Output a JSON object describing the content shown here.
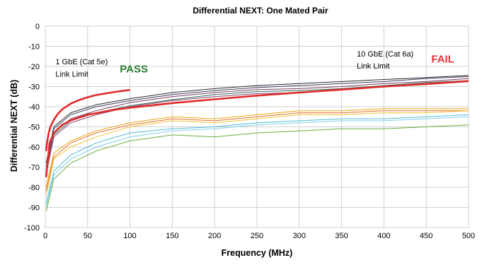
{
  "chart_data": {
    "type": "line",
    "title": "Differential NEXT: One Mated Pair",
    "xlabel": "Frequency (MHz)",
    "ylabel": "Differential NEXT (dB)",
    "xlim": [
      0,
      500
    ],
    "ylim": [
      -100,
      0
    ],
    "xticks": [
      0,
      50,
      100,
      150,
      200,
      250,
      300,
      350,
      400,
      450,
      500
    ],
    "yticks": [
      0,
      -10,
      -20,
      -30,
      -40,
      -50,
      -60,
      -70,
      -80,
      -90,
      -100
    ],
    "grid": true,
    "annotations": [
      {
        "text": "1 GbE (Cat 5e)",
        "x": 12,
        "y": -19
      },
      {
        "text": "Link Limit",
        "x": 12,
        "y": -25
      },
      {
        "text": "PASS",
        "x": 88,
        "y": -23,
        "color": "#2e7d32"
      },
      {
        "text": "10 GbE (Cat 6a)",
        "x": 368,
        "y": -15
      },
      {
        "text": "Link Limit",
        "x": 368,
        "y": -21
      },
      {
        "text": "FAIL",
        "x": 456,
        "y": -18,
        "color": "#e8333a"
      }
    ],
    "limit_lines": [
      {
        "label": "1 GbE (Cat 5e) Link Limit",
        "color": "#e02a2a",
        "x": [
          1,
          2,
          4,
          6,
          10,
          15,
          20,
          30,
          40,
          50,
          60,
          70,
          80,
          90,
          100
        ],
        "y": [
          -62,
          -58,
          -53,
          -50,
          -46.5,
          -43.5,
          -41.3,
          -38.5,
          -36.7,
          -35.3,
          -34.2,
          -33.5,
          -32.8,
          -32.2,
          -31.7
        ]
      },
      {
        "label": "10 GbE (Cat 6a) Link Limit",
        "color": "#e02a2a",
        "x": [
          1,
          5,
          10,
          20,
          30,
          50,
          80,
          100,
          150,
          200,
          250,
          300,
          350,
          400,
          450,
          500
        ],
        "y": [
          -75,
          -58,
          -53,
          -49,
          -46.8,
          -44,
          -41.6,
          -40.5,
          -38.2,
          -36.3,
          -34.5,
          -33,
          -31.5,
          -30,
          -28.7,
          -27.3
        ]
      }
    ],
    "series": [
      {
        "color": "#2b2b2b",
        "x": [
          1,
          10,
          30,
          60,
          100,
          150,
          200,
          250,
          300,
          350,
          400,
          450,
          500
        ],
        "y": [
          -68,
          -50,
          -43,
          -39,
          -36,
          -33,
          -31,
          -29.5,
          -28.5,
          -27.5,
          -26.5,
          -25.5,
          -24.5
        ]
      },
      {
        "color": "#3d3d5c",
        "x": [
          1,
          10,
          30,
          60,
          100,
          150,
          200,
          250,
          300,
          350,
          400,
          450,
          500
        ],
        "y": [
          -70,
          -51,
          -44,
          -40,
          -37,
          -34,
          -32,
          -30.5,
          -29.5,
          -28.5,
          -27.5,
          -26,
          -25
        ]
      },
      {
        "color": "#7a3b5e",
        "x": [
          1,
          10,
          30,
          60,
          100,
          150,
          200,
          250,
          300,
          350,
          400,
          450,
          500
        ],
        "y": [
          -72,
          -53,
          -46,
          -42,
          -38,
          -35,
          -33,
          -31.5,
          -31,
          -30,
          -28.5,
          -27.5,
          -26
        ]
      },
      {
        "color": "#2f6b5a",
        "x": [
          1,
          10,
          30,
          60,
          100,
          150,
          200,
          250,
          300,
          350,
          400,
          450,
          500
        ],
        "y": [
          -74,
          -54,
          -47,
          -43,
          -39.5,
          -36.5,
          -34,
          -32.5,
          -32,
          -31,
          -29.5,
          -28,
          -27
        ]
      },
      {
        "color": "#8c3a6e",
        "x": [
          1,
          10,
          30,
          60,
          100,
          150,
          200,
          250,
          300,
          350,
          400,
          450,
          500
        ],
        "y": [
          -73,
          -55,
          -48,
          -44,
          -40,
          -37,
          -35,
          -33.5,
          -33,
          -31.5,
          -30,
          -29,
          -27.5
        ]
      },
      {
        "color": "#e8a70c",
        "x": [
          1,
          10,
          30,
          60,
          100,
          150,
          200,
          250,
          300,
          350,
          400,
          450,
          500
        ],
        "y": [
          -80,
          -63,
          -57,
          -52,
          -48,
          -45,
          -46,
          -44,
          -42,
          -42,
          -41,
          -41,
          -41
        ]
      },
      {
        "color": "#e36c2b",
        "x": [
          1,
          10,
          30,
          60,
          100,
          150,
          200,
          250,
          300,
          350,
          400,
          450,
          500
        ],
        "y": [
          -82,
          -65,
          -58,
          -53,
          -49,
          -46,
          -47,
          -45,
          -43,
          -43,
          -42,
          -42,
          -42
        ]
      },
      {
        "color": "#f2c230",
        "x": [
          1,
          10,
          30,
          60,
          100,
          150,
          200,
          250,
          300,
          350,
          400,
          450,
          500
        ],
        "y": [
          -84,
          -66,
          -60,
          -55,
          -50,
          -47,
          -48,
          -46,
          -44,
          -44,
          -43,
          -43,
          -42
        ]
      },
      {
        "color": "#4fb8d8",
        "x": [
          1,
          10,
          30,
          60,
          100,
          150,
          200,
          250,
          300,
          350,
          400,
          450,
          500
        ],
        "y": [
          -88,
          -72,
          -64,
          -58,
          -53,
          -51,
          -50,
          -48,
          -47,
          -46,
          -46,
          -45,
          -44
        ]
      },
      {
        "color": "#7fcfe8",
        "x": [
          1,
          10,
          30,
          60,
          100,
          150,
          200,
          250,
          300,
          350,
          400,
          450,
          500
        ],
        "y": [
          -90,
          -74,
          -66,
          -60,
          -55,
          -52,
          -51,
          -49,
          -48,
          -47,
          -47,
          -46,
          -45
        ]
      },
      {
        "color": "#6aae3c",
        "x": [
          1,
          10,
          30,
          60,
          100,
          150,
          200,
          250,
          300,
          350,
          400,
          450,
          500
        ],
        "y": [
          -92,
          -76,
          -68,
          -62,
          -57,
          -54,
          -55,
          -53,
          -52,
          -51,
          -51,
          -50,
          -49
        ]
      }
    ]
  }
}
